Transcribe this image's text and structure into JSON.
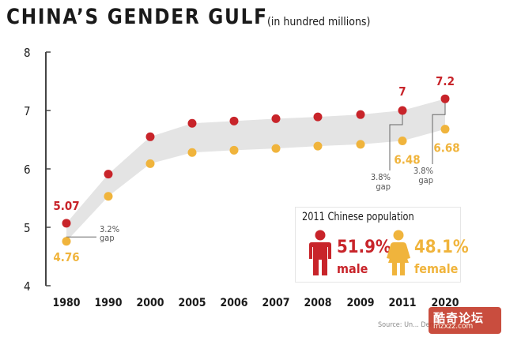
{
  "header": {
    "title": "CHINA’S GENDER GULF",
    "subtitle": "(in hundred millions)"
  },
  "source": "Source: Un... Dem...",
  "colors": {
    "male": "#c8242a",
    "female": "#f0b43c",
    "band": "#e4e4e4",
    "axis": "#444444"
  },
  "chart_data": {
    "type": "line",
    "categories": [
      "1980",
      "1990",
      "2000",
      "2005",
      "2006",
      "2007",
      "2008",
      "2009",
      "2011",
      "2020"
    ],
    "yticks": [
      "4",
      "5",
      "6",
      "7",
      "8"
    ],
    "ylim": [
      4,
      8
    ],
    "series": [
      {
        "name": "male",
        "values": [
          5.07,
          5.91,
          6.55,
          6.78,
          6.82,
          6.86,
          6.89,
          6.93,
          7.0,
          7.2
        ]
      },
      {
        "name": "female",
        "values": [
          4.76,
          5.53,
          6.09,
          6.28,
          6.32,
          6.35,
          6.39,
          6.42,
          6.48,
          6.68
        ]
      }
    ],
    "value_labels": [
      {
        "series": "male",
        "index": 0,
        "text": "5.07"
      },
      {
        "series": "female",
        "index": 0,
        "text": "4.76"
      },
      {
        "series": "male",
        "index": 8,
        "text": "7"
      },
      {
        "series": "female",
        "index": 8,
        "text": "6.48"
      },
      {
        "series": "male",
        "index": 9,
        "text": "7.2"
      },
      {
        "series": "female",
        "index": 9,
        "text": "6.68"
      }
    ],
    "gap_annotations": [
      {
        "index": 0,
        "value": "3.2%",
        "word": "gap"
      },
      {
        "index": 8,
        "value": "3.8%",
        "word": "gap"
      },
      {
        "index": 9,
        "value": "3.8%",
        "word": "gap"
      }
    ],
    "grid": false
  },
  "panel": {
    "title": "2011 Chinese population",
    "male_pct": "51.9%",
    "male_label": "male",
    "female_pct": "48.1%",
    "female_label": "female",
    "male_icon": "man-icon",
    "female_icon": "woman-icon"
  },
  "watermark": {
    "text": "酷奇论坛",
    "sub": "mzxzz.com"
  }
}
